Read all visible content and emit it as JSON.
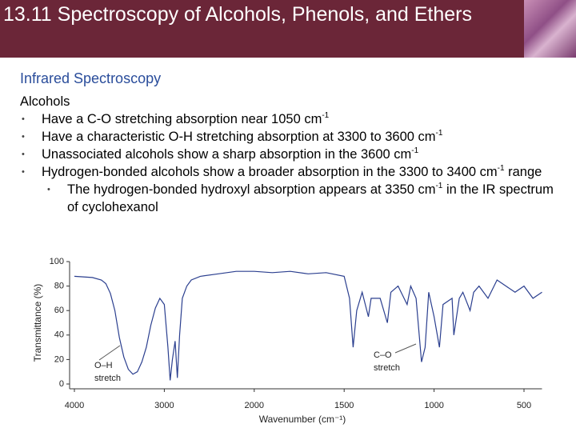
{
  "header": {
    "title": "13.11 Spectroscopy of Alcohols, Phenols, and Ethers"
  },
  "subtitle": "Infrared Spectroscopy",
  "section": "Alcohols",
  "bullets": [
    {
      "text": "Have a C-O stretching absorption near 1050 cm",
      "sup": "-1"
    },
    {
      "text": "Have a characteristic O-H stretching absorption at 3300 to 3600 cm",
      "sup": "-1"
    },
    {
      "text": "Unassociated alcohols show a sharp absorption in the 3600 cm",
      "sup": "-1"
    },
    {
      "text": "Hydrogen-bonded alcohols show a broader absorption in the 3300 to 3400 cm",
      "sup": "-1",
      "after": " range"
    }
  ],
  "sub_bullet": {
    "text": "The hydrogen-bonded hydroxyl absorption appears at 3350 cm",
    "sup": "-1",
    "after": " in the IR spectrum of cyclohexanol"
  },
  "chart_data": {
    "type": "line",
    "xlabel": "Wavenumber (cm⁻¹)",
    "ylabel": "Transmittance (%)",
    "annotations": [
      {
        "text": "O–H",
        "text2": "stretch"
      },
      {
        "text": "C–O",
        "text2": "stretch"
      }
    ],
    "x": [
      4000,
      3800,
      3700,
      3650,
      3600,
      3550,
      3500,
      3450,
      3400,
      3350,
      3300,
      3250,
      3200,
      3150,
      3100,
      3050,
      3000,
      2960,
      2935,
      2910,
      2880,
      2855,
      2830,
      2800,
      2750,
      2700,
      2600,
      2400,
      2200,
      2000,
      1900,
      1800,
      1700,
      1600,
      1500,
      1470,
      1450,
      1430,
      1400,
      1365,
      1350,
      1300,
      1260,
      1240,
      1200,
      1150,
      1130,
      1100,
      1070,
      1050,
      1030,
      1000,
      970,
      950,
      900,
      890,
      860,
      840,
      800,
      780,
      750,
      700,
      650,
      600,
      550,
      500,
      450,
      400
    ],
    "series": [
      {
        "color": "#2b3f8f",
        "values": [
          88,
          87,
          85,
          82,
          74,
          60,
          38,
          22,
          12,
          8,
          10,
          18,
          30,
          48,
          62,
          70,
          65,
          30,
          3,
          20,
          35,
          5,
          40,
          70,
          80,
          85,
          88,
          90,
          92,
          92,
          91,
          92,
          90,
          91,
          88,
          70,
          30,
          60,
          75,
          55,
          70,
          70,
          50,
          75,
          80,
          65,
          80,
          70,
          18,
          30,
          75,
          55,
          30,
          65,
          70,
          40,
          70,
          75,
          60,
          75,
          80,
          70,
          85,
          80,
          75,
          80,
          70,
          75
        ]
      }
    ],
    "xlim": [
      4000,
      400
    ],
    "xticks": [
      4000,
      3000,
      2000,
      1500,
      1000,
      500
    ],
    "ylim": [
      0,
      100
    ],
    "yticks": [
      0,
      20,
      40,
      60,
      80,
      100
    ]
  }
}
